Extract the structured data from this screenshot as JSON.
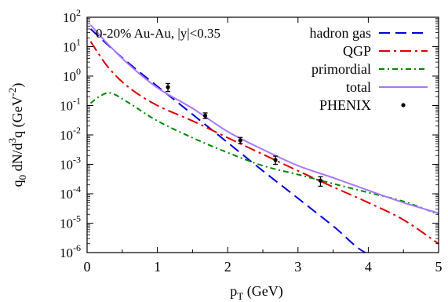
{
  "chart_data": {
    "type": "line",
    "title": "",
    "annotation": "0-20% Au-Au, |y|<0.35",
    "xlabel": {
      "base": "p",
      "sub": "T",
      "rest": " (GeV)"
    },
    "ylabel": {
      "p1": "q",
      "p1sub": "0",
      "p2": " dN/d",
      "p2sup": "3",
      "p3": "q (GeV",
      "p3sup": "-2",
      "p4": ")"
    },
    "xlim": [
      0,
      5
    ],
    "ylim": [
      1e-06,
      100
    ],
    "yscale": "log",
    "grid": false,
    "legend_position": "top-right",
    "x_ticks": [
      {
        "value": 0,
        "label": "0"
      },
      {
        "value": 1,
        "label": "1"
      },
      {
        "value": 2,
        "label": "2"
      },
      {
        "value": 3,
        "label": "3"
      },
      {
        "value": 4,
        "label": "4"
      },
      {
        "value": 5,
        "label": "5"
      }
    ],
    "y_ticks": [
      {
        "value": 100.0,
        "base": "10",
        "exp": "2"
      },
      {
        "value": 10.0,
        "base": "10",
        "exp": "1"
      },
      {
        "value": 1.0,
        "base": "10",
        "exp": "0"
      },
      {
        "value": 0.1,
        "base": "10",
        "exp": "-1"
      },
      {
        "value": 0.01,
        "base": "10",
        "exp": "-2"
      },
      {
        "value": 0.001,
        "base": "10",
        "exp": "-3"
      },
      {
        "value": 0.0001,
        "base": "10",
        "exp": "-4"
      },
      {
        "value": 1e-05,
        "base": "10",
        "exp": "-5"
      },
      {
        "value": 1e-06,
        "base": "10",
        "exp": "-6"
      }
    ],
    "series": [
      {
        "name": "hadron gas",
        "kind": "line",
        "color": "#0000dd",
        "dash": "14,7",
        "x": [
          0.05,
          0.5,
          1.0,
          1.5,
          2.0,
          2.5,
          3.0,
          3.5,
          4.0,
          4.5
        ],
        "y": [
          40,
          4.2,
          0.45,
          0.05,
          0.0055,
          0.0006,
          7e-05,
          8e-06,
          9e-07,
          1e-06
        ]
      },
      {
        "name": "QGP",
        "kind": "line",
        "color": "#dd0000",
        "dash": "14,5,3,5",
        "x": [
          0.05,
          0.3,
          0.6,
          1.0,
          1.5,
          2.0,
          2.5,
          3.0,
          3.5,
          4.0,
          4.5,
          5.0
        ],
        "y": [
          15,
          2.0,
          0.4,
          0.1,
          0.03,
          0.008,
          0.0022,
          0.0006,
          0.00017,
          5e-05,
          1.3e-05,
          2e-06
        ]
      },
      {
        "name": "primordial",
        "kind": "line",
        "color": "#008800",
        "dash": "7,4,2,4",
        "x": [
          0.05,
          0.2,
          0.35,
          0.6,
          1.0,
          1.5,
          2.0,
          2.5,
          3.0,
          3.5,
          4.0,
          4.5,
          5.0
        ],
        "y": [
          0.12,
          0.22,
          0.26,
          0.12,
          0.03,
          0.008,
          0.0025,
          0.0009,
          0.00045,
          0.00022,
          0.00011,
          5.5e-05,
          2e-05
        ]
      },
      {
        "name": "total",
        "kind": "line",
        "color": "#aa77ff",
        "dash": "",
        "x": [
          0.05,
          0.3,
          0.6,
          1.0,
          1.5,
          2.0,
          2.5,
          3.0,
          3.5,
          4.0,
          4.5,
          5.0
        ],
        "y": [
          55,
          12,
          2.4,
          0.4,
          0.08,
          0.013,
          0.0032,
          0.0009,
          0.00035,
          0.00013,
          5e-05,
          2.2e-05
        ]
      },
      {
        "name": "PHENIX",
        "kind": "points",
        "color": "#000000",
        "x": [
          1.15,
          1.68,
          2.18,
          2.68,
          3.32
        ],
        "y": [
          0.42,
          0.045,
          0.0065,
          0.0014,
          0.00028
        ],
        "ylow": [
          0.3,
          0.036,
          0.0051,
          0.001,
          0.00018
        ],
        "yhigh": [
          0.56,
          0.056,
          0.0082,
          0.0019,
          0.00038
        ]
      }
    ]
  }
}
